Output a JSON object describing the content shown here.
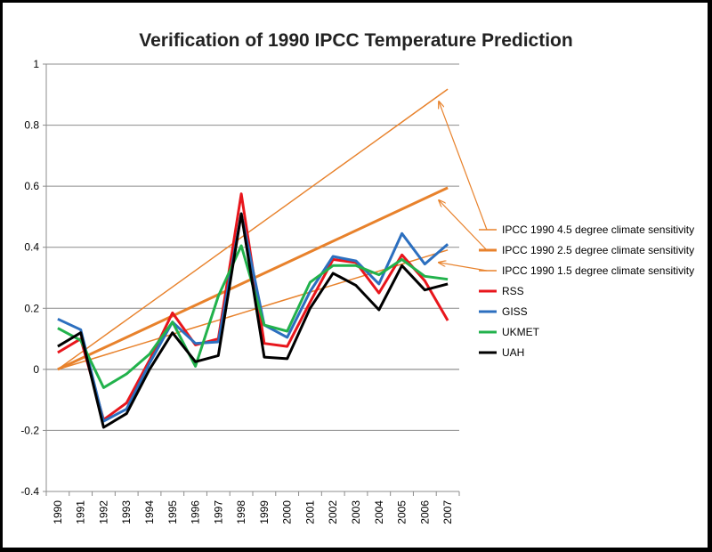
{
  "chart_data": {
    "type": "line",
    "title": "Verification of 1990 IPCC Temperature Prediction",
    "xlabel": "",
    "ylabel": "",
    "x": [
      "1990",
      "1991",
      "1992",
      "1993",
      "1994",
      "1995",
      "1996",
      "1997",
      "1998",
      "1999",
      "2000",
      "2001",
      "2002",
      "2003",
      "2004",
      "2005",
      "2006",
      "2007"
    ],
    "ylim": [
      -0.4,
      1
    ],
    "yticks": [
      -0.4,
      -0.2,
      0,
      0.2,
      0.4,
      0.6,
      0.8,
      1
    ],
    "ytick_labels": [
      "-0.4",
      "-0.2",
      "0",
      "0.2",
      "0.4",
      "0.6",
      "0.8",
      "1"
    ],
    "grid": "horizontal",
    "legend_position": "right",
    "series": [
      {
        "name": "IPCC 1990 4.5 degree climate sensitivity",
        "color": "#E8822C",
        "width": 1.5,
        "values": [
          0,
          0.054,
          0.108,
          0.162,
          0.216,
          0.27,
          0.324,
          0.378,
          0.432,
          0.486,
          0.54,
          0.594,
          0.648,
          0.702,
          0.756,
          0.81,
          0.864,
          0.918
        ]
      },
      {
        "name": "IPCC 1990 2.5 degree climate sensitivity",
        "color": "#E8822C",
        "width": 3,
        "values": [
          0,
          0.035,
          0.07,
          0.105,
          0.14,
          0.175,
          0.21,
          0.245,
          0.28,
          0.315,
          0.35,
          0.385,
          0.42,
          0.455,
          0.49,
          0.525,
          0.56,
          0.595
        ]
      },
      {
        "name": "IPCC 1990 1.5 degree climate sensitivity",
        "color": "#E8822C",
        "width": 1.5,
        "values": [
          0,
          0.023,
          0.046,
          0.069,
          0.092,
          0.115,
          0.138,
          0.161,
          0.184,
          0.207,
          0.23,
          0.253,
          0.276,
          0.299,
          0.322,
          0.345,
          0.368,
          0.391
        ]
      },
      {
        "name": "RSS",
        "color": "#E8161C",
        "width": 3,
        "values": [
          0.055,
          0.1,
          -0.165,
          -0.11,
          0.03,
          0.185,
          0.08,
          0.1,
          0.575,
          0.085,
          0.075,
          0.22,
          0.36,
          0.35,
          0.25,
          0.375,
          0.29,
          0.16
        ]
      },
      {
        "name": "GISS",
        "color": "#2C6FBF",
        "width": 3,
        "values": [
          0.165,
          0.13,
          -0.17,
          -0.13,
          0.02,
          0.155,
          0.085,
          0.09,
          0.51,
          0.145,
          0.105,
          0.255,
          0.37,
          0.355,
          0.28,
          0.445,
          0.345,
          0.41
        ]
      },
      {
        "name": "UKMET",
        "color": "#22B24C",
        "width": 3,
        "values": [
          0.135,
          0.095,
          -0.06,
          -0.015,
          0.05,
          0.155,
          0.01,
          0.24,
          0.405,
          0.145,
          0.125,
          0.285,
          0.34,
          0.34,
          0.31,
          0.36,
          0.305,
          0.295
        ]
      },
      {
        "name": "UAH",
        "color": "#000000",
        "width": 3,
        "values": [
          0.075,
          0.12,
          -0.19,
          -0.145,
          0.0,
          0.12,
          0.025,
          0.045,
          0.51,
          0.04,
          0.035,
          0.2,
          0.315,
          0.275,
          0.195,
          0.34,
          0.26,
          0.28
        ]
      }
    ]
  }
}
